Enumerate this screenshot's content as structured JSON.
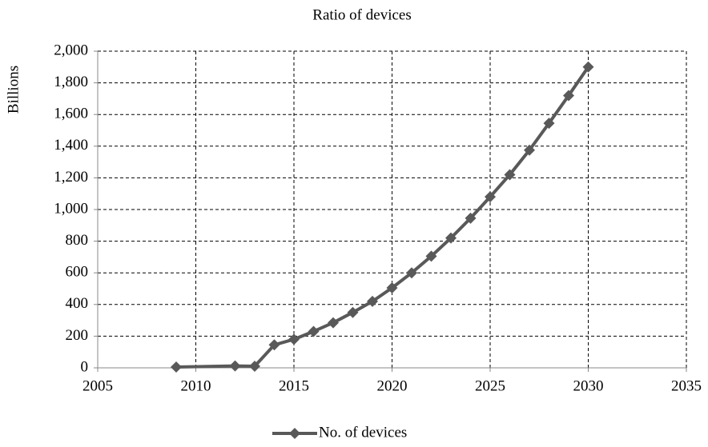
{
  "chart_data": {
    "type": "line",
    "title": "Ratio of devices",
    "ylabel": "Billions",
    "x": [
      2009,
      2012,
      2013,
      2014,
      2015,
      2016,
      2017,
      2018,
      2019,
      2020,
      2021,
      2022,
      2023,
      2024,
      2025,
      2026,
      2027,
      2028,
      2029,
      2030
    ],
    "series": [
      {
        "name": "No. of devices",
        "color": "#595959",
        "values": [
          5,
          12,
          10,
          145,
          180,
          230,
          285,
          350,
          420,
          505,
          600,
          705,
          820,
          945,
          1080,
          1220,
          1375,
          1545,
          1720,
          1900
        ]
      }
    ],
    "xlim": [
      2005,
      2035
    ],
    "xticks": [
      2005,
      2010,
      2015,
      2020,
      2025,
      2030,
      2035
    ],
    "ylim": [
      0,
      2000
    ],
    "yticks": [
      0,
      200,
      400,
      600,
      800,
      {
        "value": 1000,
        "label": "1,000"
      },
      {
        "value": 1200,
        "label": "1,200"
      },
      {
        "value": 1400,
        "label": "1,400"
      },
      {
        "value": 1600,
        "label": "1,600"
      },
      {
        "value": 1800,
        "label": "1,800"
      },
      {
        "value": 2000,
        "label": "2,000"
      }
    ],
    "grid": true,
    "legend": "bottom"
  }
}
